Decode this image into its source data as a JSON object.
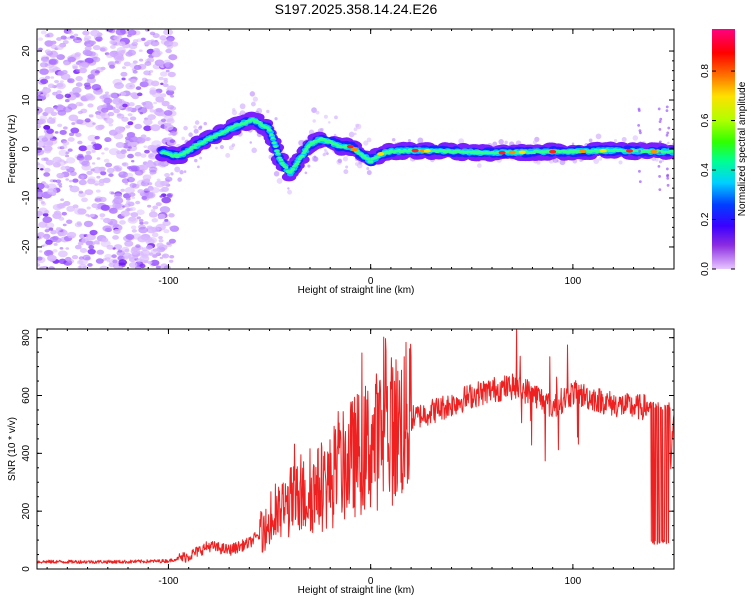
{
  "title": "S197.2025.358.14.24.E26",
  "chart_data": [
    {
      "type": "heatmap",
      "name": "spectrogram",
      "xlabel": "Height of straight line (km)",
      "ylabel": "Frequency (Hz)",
      "xlim": [
        -165,
        150
      ],
      "ylim": [
        -24.5,
        24.5
      ],
      "xticks": [
        "-100",
        "0",
        "100"
      ],
      "yticks": [
        "20",
        "10",
        "0",
        "-10",
        "-20"
      ],
      "colorbar": {
        "label": "Normalized spectral amplitude",
        "range": [
          0,
          0.97
        ],
        "ticks": [
          "0.0",
          "0.2",
          "0.4",
          "0.6",
          "0.8"
        ]
      },
      "ridge": {
        "description_points_x": [
          -105,
          -95,
          -85,
          -75,
          -65,
          -58,
          -50,
          -45,
          -40,
          -35,
          -30,
          -25,
          -20,
          -15,
          -10,
          -5,
          0,
          5,
          10,
          20,
          40,
          60,
          80,
          100,
          120,
          140,
          150
        ],
        "description_points_y": [
          -0.5,
          -1.5,
          1,
          3,
          5,
          6,
          4,
          -2,
          -5,
          -2,
          1,
          2,
          1.5,
          0.5,
          0.5,
          -1,
          -2.5,
          -1,
          -0.5,
          -0.3,
          -0.5,
          -0.8,
          -0.6,
          -0.5,
          -0.3,
          -0.5,
          -0.6
        ]
      }
    },
    {
      "type": "line",
      "name": "snr",
      "xlabel": "Height of straight line (km)",
      "ylabel": "SNR (10 * v/v)",
      "xlim": [
        -165,
        150
      ],
      "ylim": [
        0,
        830
      ],
      "xticks": [
        "-100",
        "0",
        "100"
      ],
      "yticks": [
        "800",
        "600",
        "400",
        "200",
        "0"
      ],
      "color": "#ee2020",
      "envelope": {
        "x": [
          -165,
          -120,
          -100,
          -90,
          -80,
          -70,
          -60,
          -50,
          -40,
          -30,
          -20,
          -10,
          0,
          10,
          20,
          30,
          40,
          50,
          60,
          70,
          80,
          90,
          100,
          110,
          120,
          130,
          140,
          145,
          150
        ],
        "y": [
          25,
          25,
          28,
          45,
          80,
          65,
          90,
          150,
          230,
          260,
          300,
          380,
          430,
          480,
          520,
          545,
          570,
          600,
          620,
          630,
          610,
          560,
          610,
          590,
          570,
          560,
          560,
          90,
          520
        ]
      }
    }
  ]
}
